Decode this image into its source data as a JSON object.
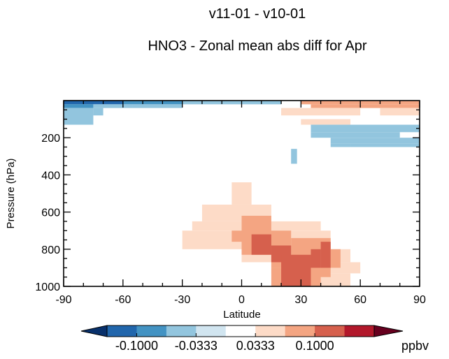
{
  "chart_data": {
    "type": "heatmap",
    "title": "v11-01 - v10-01",
    "subtitle": "HNO3 - Zonal mean abs diff for Apr",
    "xlabel": "Latitude",
    "ylabel": "Pressure (hPa)",
    "xlim": [
      -90,
      90
    ],
    "ylim": [
      1000,
      0
    ],
    "x_ticks": [
      -90,
      -60,
      -30,
      0,
      30,
      60,
      90
    ],
    "y_ticks": [
      200,
      400,
      600,
      800,
      1000
    ],
    "grid": false,
    "colorbar": {
      "unit": "ppbv",
      "ticks": [
        "-0.1000",
        "-0.0333",
        "0.0333",
        "0.1000"
      ],
      "levels": [
        -0.1333,
        -0.1,
        -0.0667,
        -0.0333,
        0,
        0.0333,
        0.0667,
        0.1,
        0.1333
      ],
      "colors": [
        "#08306b",
        "#2166ac",
        "#4393c3",
        "#92c5de",
        "#d1e5f0",
        "#ffffff",
        "#fddbc7",
        "#f4a582",
        "#d6604d",
        "#b2182b",
        "#67001f"
      ]
    },
    "cells": [
      {
        "lat": [
          -90,
          -60
        ],
        "p": [
          0,
          20
        ],
        "v": -0.12
      },
      {
        "lat": [
          -60,
          -30
        ],
        "p": [
          0,
          20
        ],
        "v": -0.09
      },
      {
        "lat": [
          -30,
          0
        ],
        "p": [
          0,
          20
        ],
        "v": -0.06
      },
      {
        "lat": [
          0,
          20
        ],
        "p": [
          0,
          20
        ],
        "v": -0.04
      },
      {
        "lat": [
          -90,
          -75
        ],
        "p": [
          20,
          40
        ],
        "v": -0.09
      },
      {
        "lat": [
          -75,
          -55
        ],
        "p": [
          20,
          40
        ],
        "v": -0.06
      },
      {
        "lat": [
          -55,
          -30
        ],
        "p": [
          20,
          40
        ],
        "v": -0.04
      },
      {
        "lat": [
          -90,
          -75
        ],
        "p": [
          40,
          130
        ],
        "v": -0.04
      },
      {
        "lat": [
          -75,
          -70
        ],
        "p": [
          40,
          80
        ],
        "v": -0.04
      },
      {
        "lat": [
          30,
          90
        ],
        "p": [
          0,
          20
        ],
        "v": 0.07
      },
      {
        "lat": [
          35,
          90
        ],
        "p": [
          20,
          40
        ],
        "v": 0.07
      },
      {
        "lat": [
          20,
          60
        ],
        "p": [
          40,
          80
        ],
        "v": 0.04
      },
      {
        "lat": [
          70,
          90
        ],
        "p": [
          40,
          80
        ],
        "v": 0.04
      },
      {
        "lat": [
          30,
          55
        ],
        "p": [
          100,
          130
        ],
        "v": 0.04
      },
      {
        "lat": [
          35,
          90
        ],
        "p": [
          130,
          170
        ],
        "v": -0.04
      },
      {
        "lat": [
          35,
          80
        ],
        "p": [
          170,
          200
        ],
        "v": -0.04
      },
      {
        "lat": [
          45,
          90
        ],
        "p": [
          200,
          230
        ],
        "v": -0.04
      },
      {
        "lat": [
          45,
          55
        ],
        "p": [
          230,
          250
        ],
        "v": -0.04
      },
      {
        "lat": [
          55,
          90
        ],
        "p": [
          230,
          250
        ],
        "v": -0.04
      },
      {
        "lat": [
          25,
          28
        ],
        "p": [
          260,
          340
        ],
        "v": -0.04
      },
      {
        "lat": [
          -5,
          5
        ],
        "p": [
          440,
          560
        ],
        "v": 0.04
      },
      {
        "lat": [
          -20,
          15
        ],
        "p": [
          560,
          650
        ],
        "v": 0.04
      },
      {
        "lat": [
          -25,
          40
        ],
        "p": [
          650,
          700
        ],
        "v": 0.04
      },
      {
        "lat": [
          -30,
          45
        ],
        "p": [
          700,
          800
        ],
        "v": 0.04
      },
      {
        "lat": [
          0,
          55
        ],
        "p": [
          800,
          870
        ],
        "v": 0.04
      },
      {
        "lat": [
          15,
          60
        ],
        "p": [
          870,
          930
        ],
        "v": 0.04
      },
      {
        "lat": [
          20,
          55
        ],
        "p": [
          930,
          1000
        ],
        "v": 0.04
      },
      {
        "lat": [
          0,
          15
        ],
        "p": [
          620,
          830
        ],
        "v": 0.07
      },
      {
        "lat": [
          15,
          25
        ],
        "p": [
          700,
          900
        ],
        "v": 0.07
      },
      {
        "lat": [
          25,
          45
        ],
        "p": [
          740,
          950
        ],
        "v": 0.07
      },
      {
        "lat": [
          15,
          40
        ],
        "p": [
          900,
          1000
        ],
        "v": 0.07
      },
      {
        "lat": [
          45,
          50
        ],
        "p": [
          800,
          900
        ],
        "v": 0.07
      },
      {
        "lat": [
          -5,
          0
        ],
        "p": [
          700,
          760
        ],
        "v": 0.07
      },
      {
        "lat": [
          5,
          15
        ],
        "p": [
          720,
          830
        ],
        "v": 0.1
      },
      {
        "lat": [
          15,
          25
        ],
        "p": [
          780,
          870
        ],
        "v": 0.1
      },
      {
        "lat": [
          20,
          35
        ],
        "p": [
          830,
          1000
        ],
        "v": 0.1
      },
      {
        "lat": [
          35,
          40
        ],
        "p": [
          800,
          900
        ],
        "v": 0.1
      },
      {
        "lat": [
          40,
          45
        ],
        "p": [
          760,
          900
        ],
        "v": 0.1
      }
    ]
  }
}
